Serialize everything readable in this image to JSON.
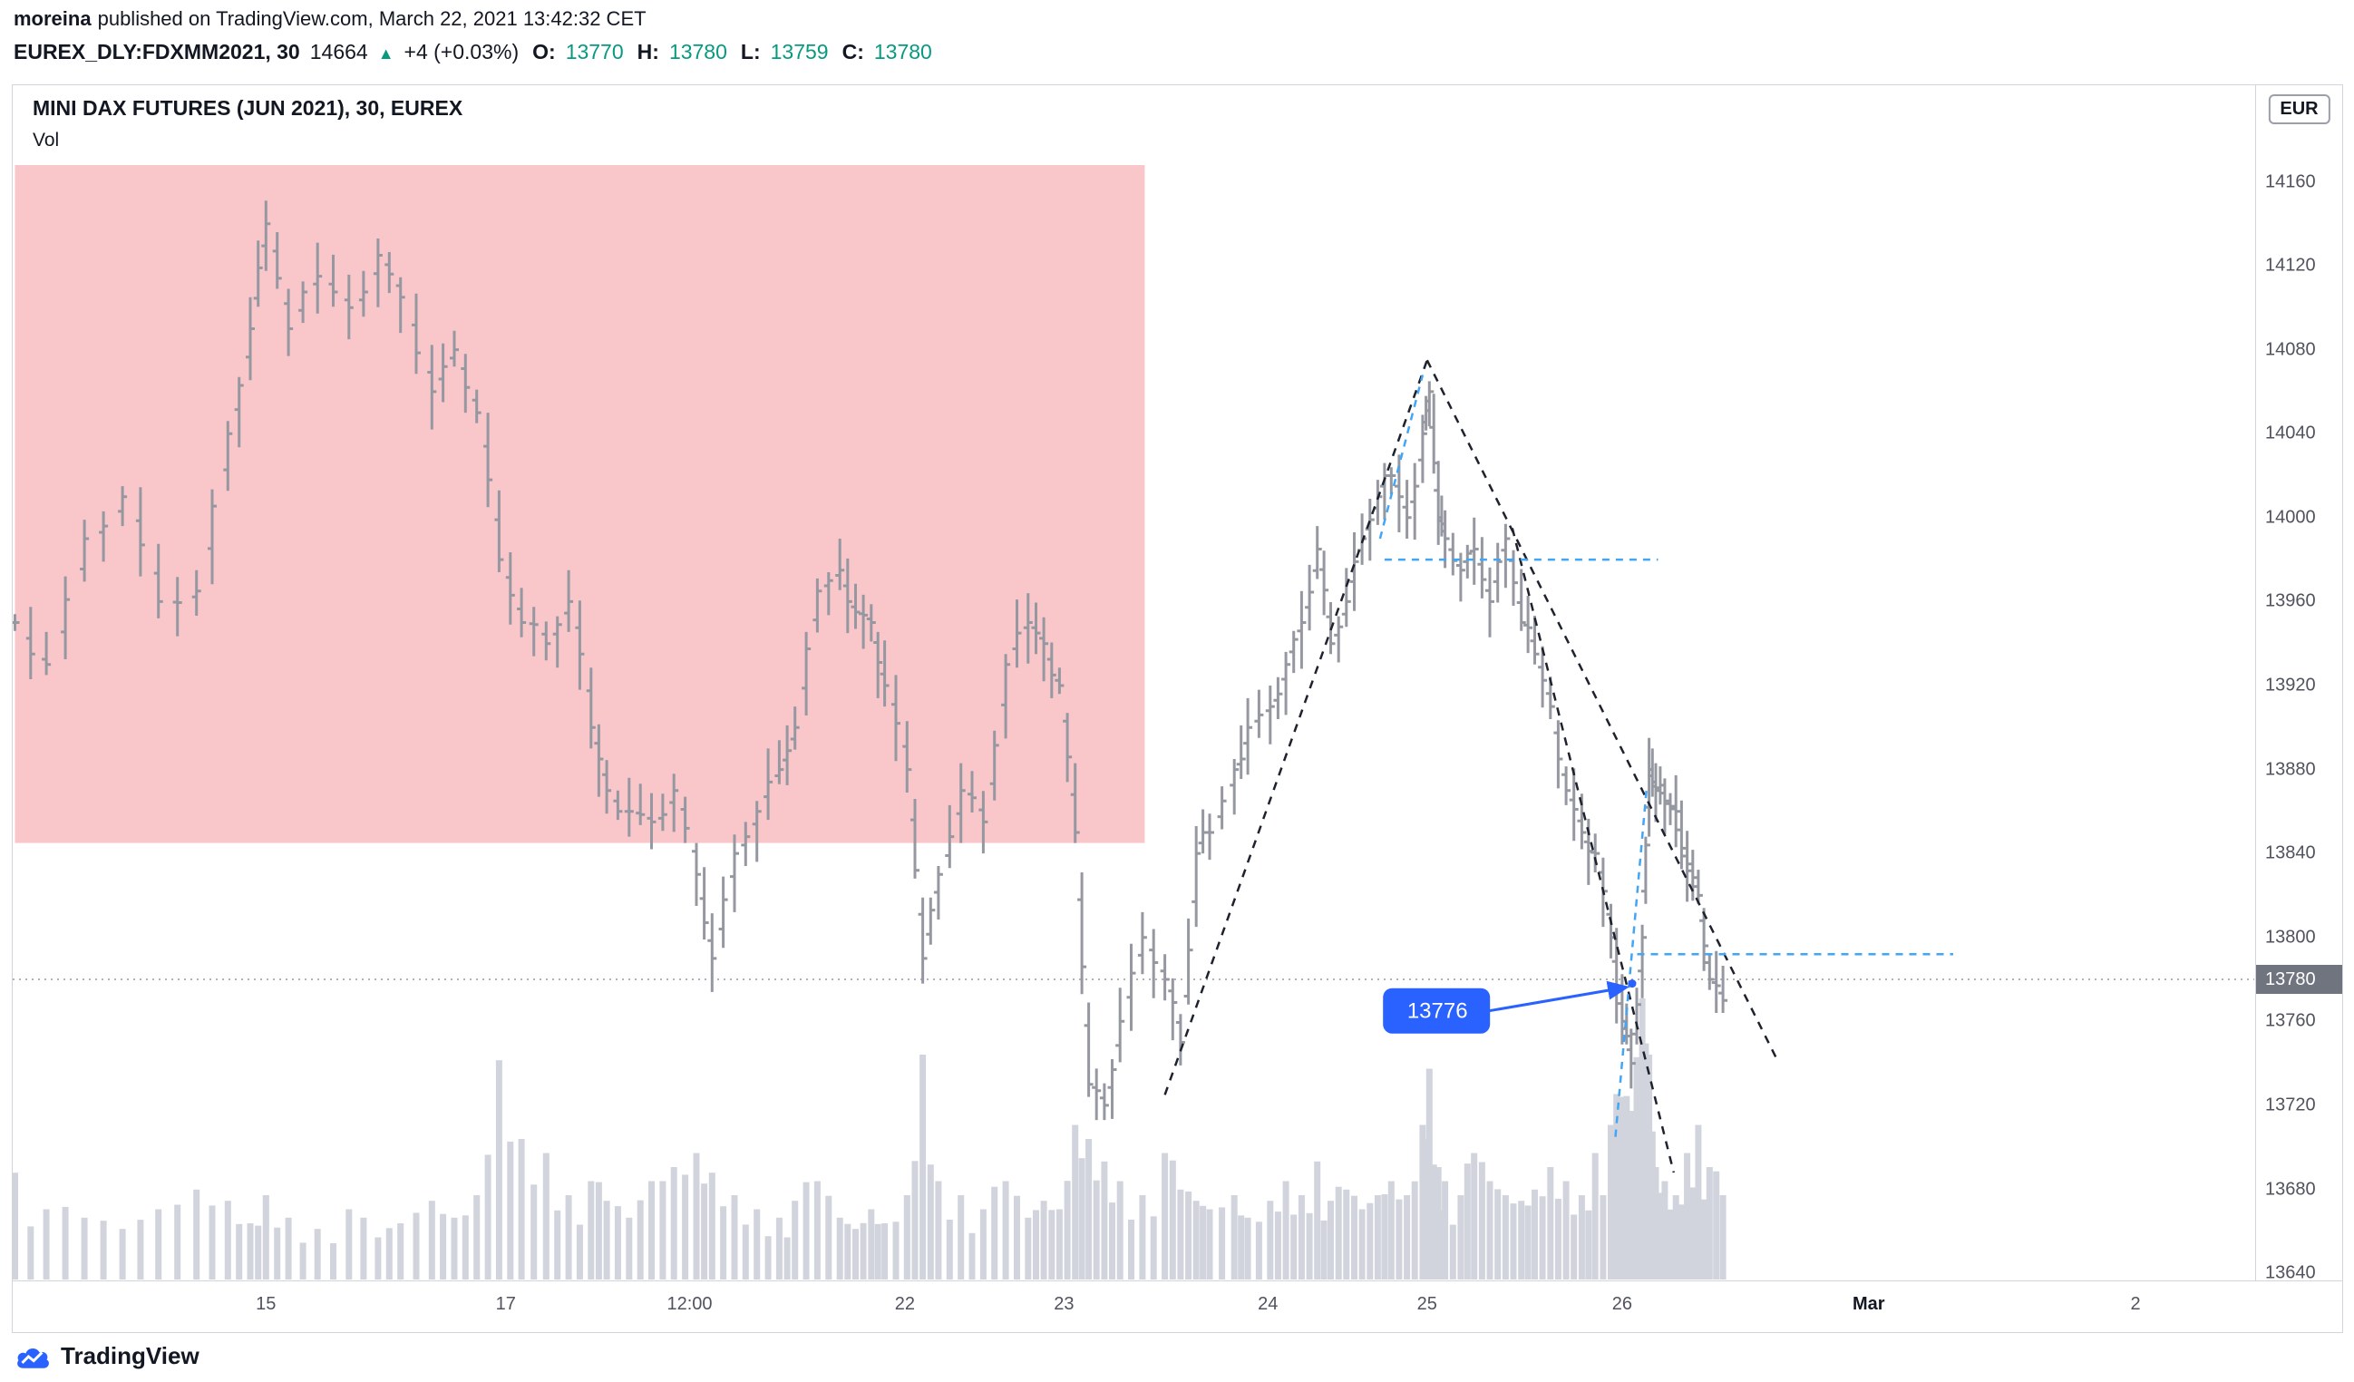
{
  "meta": {
    "publisher": "moreina",
    "published_text": "published on TradingView.com, March 22, 2021 13:42:32 CET"
  },
  "symbol_bar": {
    "symbol": "EUREX_DLY:FDXMM2021, 30",
    "last": "14664",
    "direction_icon": "▲",
    "change": "+4 (+0.03%)",
    "ohlc": [
      {
        "label": "O:",
        "value": "13770"
      },
      {
        "label": "H:",
        "value": "13780"
      },
      {
        "label": "L:",
        "value": "13759"
      },
      {
        "label": "C:",
        "value": "13780"
      }
    ]
  },
  "chart": {
    "title": "MINI DAX FUTURES (JUN 2021), 30, EUREX",
    "subtitle": "Vol",
    "currency_button": "EUR",
    "price_badge": "13780",
    "colors": {
      "pink": "#f9c6ca",
      "bar": "#9598a1",
      "volume": "#d1d4dc",
      "dashed_black": "#1e222d",
      "dashed_blue": "#42a5f5",
      "accent_blue": "#2962ff",
      "badge_gray": "#70747f"
    }
  },
  "brand": {
    "name": "TradingView"
  },
  "chart_data": {
    "type": "bar",
    "title": "MINI DAX FUTURES (JUN 2021), 30, EUREX",
    "xlabel": "",
    "ylabel": "",
    "grid": false,
    "legend": false,
    "ylim": [
      13637,
      14206
    ],
    "y_ticks": [
      14160,
      14120,
      14080,
      14040,
      14000,
      13960,
      13920,
      13880,
      13840,
      13800,
      13760,
      13720,
      13680,
      13640
    ],
    "x_ticks": [
      {
        "label": "15",
        "x": 0.113
      },
      {
        "label": "17",
        "x": 0.22
      },
      {
        "label": "12:00",
        "x": 0.302
      },
      {
        "label": "22",
        "x": 0.398
      },
      {
        "label": "23",
        "x": 0.469
      },
      {
        "label": "24",
        "x": 0.56
      },
      {
        "label": "25",
        "x": 0.631
      },
      {
        "label": "26",
        "x": 0.718
      },
      {
        "label": "Mar",
        "x": 0.828,
        "emph": true
      },
      {
        "label": "2",
        "x": 0.947
      }
    ],
    "price_line": 13780,
    "bars": [
      [
        0.001,
        13950
      ],
      [
        0.015,
        13930
      ],
      [
        0.032,
        13990
      ],
      [
        0.049,
        14010
      ],
      [
        0.065,
        13960
      ],
      [
        0.082,
        13965
      ],
      [
        0.096,
        14040
      ],
      [
        0.106,
        14090
      ],
      [
        0.113,
        14140
      ],
      [
        0.123,
        14090
      ],
      [
        0.136,
        14115
      ],
      [
        0.15,
        14100
      ],
      [
        0.163,
        14125
      ],
      [
        0.173,
        14105
      ],
      [
        0.187,
        14060
      ],
      [
        0.197,
        14080
      ],
      [
        0.207,
        14050
      ],
      [
        0.217,
        13980
      ],
      [
        0.227,
        13950
      ],
      [
        0.238,
        13940
      ],
      [
        0.248,
        13960
      ],
      [
        0.258,
        13900
      ],
      [
        0.265,
        13870
      ],
      [
        0.275,
        13860
      ],
      [
        0.285,
        13855
      ],
      [
        0.295,
        13870
      ],
      [
        0.305,
        13830
      ],
      [
        0.312,
        13790
      ],
      [
        0.322,
        13840
      ],
      [
        0.332,
        13860
      ],
      [
        0.342,
        13880
      ],
      [
        0.349,
        13900
      ],
      [
        0.359,
        13965
      ],
      [
        0.369,
        13975
      ],
      [
        0.376,
        13955
      ],
      [
        0.383,
        13950
      ],
      [
        0.389,
        13920
      ],
      [
        0.399,
        13880
      ],
      [
        0.406,
        13790
      ],
      [
        0.413,
        13830
      ],
      [
        0.423,
        13870
      ],
      [
        0.433,
        13855
      ],
      [
        0.443,
        13930
      ],
      [
        0.453,
        13950
      ],
      [
        0.46,
        13940
      ],
      [
        0.467,
        13920
      ],
      [
        0.474,
        13850
      ],
      [
        0.48,
        13730
      ],
      [
        0.487,
        13720
      ],
      [
        0.494,
        13760
      ],
      [
        0.504,
        13800
      ],
      [
        0.514,
        13780
      ],
      [
        0.521,
        13750
      ],
      [
        0.528,
        13840
      ],
      [
        0.534,
        13850
      ],
      [
        0.545,
        13880
      ],
      [
        0.551,
        13900
      ],
      [
        0.561,
        13910
      ],
      [
        0.568,
        13930
      ],
      [
        0.575,
        13950
      ],
      [
        0.582,
        13985
      ],
      [
        0.588,
        13940
      ],
      [
        0.595,
        13960
      ],
      [
        0.602,
        13990
      ],
      [
        0.609,
        14010
      ],
      [
        0.615,
        14020
      ],
      [
        0.622,
        14000
      ],
      [
        0.629,
        14040
      ],
      [
        0.632,
        14060
      ],
      [
        0.636,
        14000
      ],
      [
        0.639,
        13990
      ],
      [
        0.646,
        13975
      ],
      [
        0.652,
        13985
      ],
      [
        0.659,
        13960
      ],
      [
        0.666,
        13990
      ],
      [
        0.673,
        13950
      ],
      [
        0.679,
        13935
      ],
      [
        0.686,
        13910
      ],
      [
        0.693,
        13870
      ],
      [
        0.7,
        13850
      ],
      [
        0.706,
        13840
      ],
      [
        0.713,
        13800
      ],
      [
        0.718,
        13760
      ],
      [
        0.722,
        13740
      ],
      [
        0.727,
        13800
      ],
      [
        0.73,
        13880
      ],
      [
        0.733,
        13870
      ],
      [
        0.737,
        13865
      ],
      [
        0.742,
        13860
      ],
      [
        0.747,
        13835
      ],
      [
        0.752,
        13820
      ],
      [
        0.757,
        13780
      ],
      [
        0.763,
        13770
      ]
    ],
    "volumes": [
      0.38,
      0.25,
      0.22,
      0.18,
      0.25,
      0.32,
      0.28,
      0.2,
      0.3,
      0.22,
      0.18,
      0.25,
      0.15,
      0.2,
      0.28,
      0.22,
      0.3,
      0.78,
      0.5,
      0.45,
      0.3,
      0.35,
      0.28,
      0.22,
      0.35,
      0.4,
      0.45,
      0.38,
      0.3,
      0.25,
      0.22,
      0.28,
      0.35,
      0.22,
      0.18,
      0.25,
      0.2,
      0.3,
      0.8,
      0.35,
      0.3,
      0.25,
      0.35,
      0.22,
      0.28,
      0.25,
      0.55,
      0.5,
      0.42,
      0.35,
      0.3,
      0.45,
      0.32,
      0.28,
      0.25,
      0.3,
      0.22,
      0.28,
      0.35,
      0.3,
      0.42,
      0.28,
      0.32,
      0.25,
      0.3,
      0.35,
      0.3,
      0.55,
      0.75,
      0.4,
      0.35,
      0.3,
      0.45,
      0.35,
      0.3,
      0.28,
      0.32,
      0.4,
      0.35,
      0.3,
      0.45,
      0.55,
      0.65,
      0.6,
      1.0,
      0.8,
      0.4,
      0.35,
      0.3,
      0.45,
      0.55,
      0.4,
      0.3
    ],
    "annotations": {
      "pink_region": {
        "x1": 0.001,
        "x2": 0.505,
        "top": 14168,
        "bottom": 13845
      },
      "black_dashed": [
        [
          [
            0.514,
            13725
          ],
          [
            0.631,
            14075
          ]
        ],
        [
          [
            0.631,
            14075
          ],
          [
            0.787,
            13742
          ]
        ],
        [
          [
            0.669,
            13995
          ],
          [
            0.741,
            13688
          ]
        ]
      ],
      "blue_dashed": [
        [
          [
            0.61,
            13990
          ],
          [
            0.629,
            14068
          ]
        ],
        [
          [
            0.612,
            13980
          ],
          [
            0.734,
            13980
          ]
        ],
        [
          [
            0.7247,
            13792
          ],
          [
            0.8657,
            13792
          ]
        ],
        [
          [
            0.715,
            13705
          ],
          [
            0.729,
            13872
          ]
        ]
      ],
      "callout": {
        "text": "13776",
        "box": [
          0.6356,
          13765
        ],
        "anchor": [
          0.7225,
          13778
        ]
      }
    }
  }
}
